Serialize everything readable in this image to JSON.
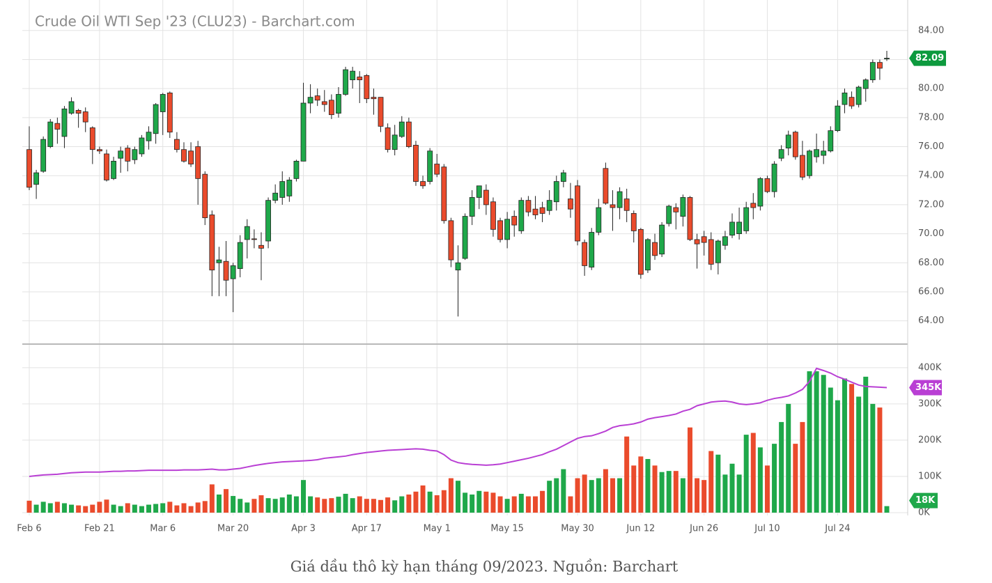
{
  "chart_data": {
    "type": "candlestick",
    "title": "Crude Oil WTI Sep '23 (CLU23) - Barchart.com",
    "caption": "Giá dầu thô kỳ hạn tháng 09/2023. Nguồn: Barchart",
    "categories": [
      "Feb 6",
      null,
      null,
      null,
      null,
      null,
      null,
      null,
      null,
      null,
      "Feb 21",
      null,
      null,
      null,
      null,
      null,
      null,
      null,
      null,
      "Mar 6",
      null,
      null,
      null,
      null,
      null,
      null,
      null,
      null,
      null,
      "Mar 20",
      null,
      null,
      null,
      null,
      null,
      null,
      null,
      null,
      null,
      "Apr 3",
      null,
      null,
      null,
      null,
      null,
      null,
      null,
      null,
      "Apr 17",
      null,
      null,
      null,
      null,
      null,
      null,
      null,
      null,
      null,
      "May 1",
      null,
      null,
      null,
      null,
      null,
      null,
      null,
      null,
      null,
      "May 15",
      null,
      null,
      null,
      null,
      null,
      null,
      null,
      null,
      null,
      "May 30",
      null,
      null,
      null,
      null,
      null,
      null,
      null,
      null,
      "Jun 12",
      null,
      null,
      null,
      null,
      null,
      null,
      null,
      null,
      "Jun 26",
      null,
      null,
      null,
      null,
      null,
      null,
      null,
      null,
      "Jul 10",
      null,
      null,
      null,
      null,
      null,
      null,
      null,
      null,
      null,
      "Jul 24",
      null,
      null,
      null,
      null,
      null,
      null,
      null
    ],
    "open": [
      75.8,
      73.4,
      74.3,
      76.0,
      77.6,
      76.7,
      78.3,
      78.5,
      78.4,
      77.3,
      75.8,
      75.5,
      73.8,
      75.2,
      75.9,
      75.1,
      75.5,
      76.4,
      76.9,
      78.4,
      79.7,
      76.5,
      75.8,
      75.7,
      76.0,
      74.1,
      71.3,
      68.0,
      68.1,
      66.9,
      67.6,
      69.6,
      69.65,
      69.2,
      69.5,
      72.3,
      72.5,
      72.6,
      73.8,
      75.0,
      79.0,
      79.5,
      79.1,
      79.2,
      78.3,
      79.6,
      80.6,
      80.8,
      80.9,
      79.4,
      79.4,
      77.3,
      75.8,
      76.7,
      77.7,
      76.1,
      73.6,
      73.6,
      74.8,
      74.6,
      70.9,
      67.5,
      68.3,
      71.2,
      72.5,
      73.0,
      72.2,
      70.9,
      69.6,
      71.2,
      70.2,
      72.3,
      71.7,
      71.8,
      71.6,
      72.2,
      73.6,
      72.4,
      73.3,
      69.4,
      67.7,
      70.1,
      74.5,
      72.0,
      71.8,
      72.4,
      71.4,
      70.3,
      67.5,
      69.4,
      68.6,
      70.7,
      71.8,
      71.2,
      72.5,
      69.6,
      69.8,
      69.6,
      68.0,
      69.2,
      69.9,
      70.0,
      70.2,
      72.1,
      71.9,
      73.8,
      72.9,
      75.2,
      75.9,
      77.0,
      75.4,
      74.0,
      75.3,
      75.4,
      75.7,
      77.1,
      78.9,
      79.4,
      78.9,
      80.0,
      80.6,
      81.8,
      82.04
    ],
    "high": [
      77.4,
      74.4,
      76.7,
      77.9,
      78.0,
      78.8,
      79.4,
      78.6,
      78.7,
      77.4,
      76.0,
      75.8,
      75.3,
      76.0,
      76.1,
      76.0,
      76.8,
      77.4,
      79.0,
      79.7,
      79.8,
      77.0,
      76.3,
      76.3,
      76.4,
      74.3,
      71.6,
      69.1,
      69.5,
      68.0,
      69.9,
      71.0,
      70.3,
      70.1,
      72.5,
      73.4,
      74.3,
      73.9,
      75.1,
      80.4,
      80.3,
      80.0,
      79.9,
      79.6,
      80.1,
      81.5,
      81.5,
      81.2,
      81.0,
      80.0,
      79.4,
      77.6,
      77.5,
      78.1,
      78.0,
      76.4,
      74.0,
      75.9,
      75.5,
      74.8,
      71.1,
      69.2,
      71.4,
      73.0,
      73.3,
      73.4,
      72.5,
      71.1,
      71.5,
      71.6,
      72.5,
      72.6,
      72.6,
      72.2,
      73.0,
      74.0,
      74.4,
      73.5,
      73.7,
      69.6,
      70.4,
      72.4,
      74.9,
      73.0,
      73.2,
      73.1,
      71.6,
      70.4,
      69.7,
      70.0,
      70.8,
      72.0,
      72.1,
      72.7,
      72.6,
      70.0,
      70.2,
      70.1,
      69.6,
      70.2,
      71.4,
      71.8,
      72.2,
      72.8,
      73.9,
      74.0,
      75.0,
      76.1,
      77.1,
      77.1,
      76.4,
      75.8,
      76.9,
      76.4,
      77.4,
      79.2,
      80.0,
      79.8,
      80.2,
      80.7,
      82.0,
      82.0,
      82.6
    ],
    "low": [
      73.0,
      72.4,
      74.2,
      75.9,
      76.2,
      75.9,
      78.2,
      77.3,
      77.0,
      74.8,
      75.5,
      73.6,
      73.7,
      74.2,
      74.3,
      74.8,
      75.3,
      75.8,
      76.2,
      76.8,
      76.6,
      75.6,
      74.9,
      74.6,
      72.0,
      70.6,
      65.7,
      65.7,
      65.7,
      64.6,
      67.0,
      68.3,
      69.0,
      66.8,
      69.0,
      72.1,
      72.0,
      72.2,
      73.6,
      75.0,
      78.3,
      78.8,
      78.4,
      77.9,
      78.0,
      79.5,
      80.0,
      79.0,
      79.0,
      78.2,
      77.0,
      75.6,
      75.4,
      76.6,
      75.9,
      73.3,
      73.1,
      73.4,
      73.9,
      70.7,
      67.7,
      64.3,
      68.2,
      70.6,
      71.7,
      71.3,
      69.8,
      69.4,
      69.0,
      69.8,
      70.0,
      71.2,
      71.0,
      70.8,
      71.3,
      71.6,
      73.2,
      71.1,
      69.2,
      67.1,
      67.5,
      69.9,
      72.0,
      70.2,
      71.0,
      70.8,
      69.4,
      66.9,
      67.3,
      68.2,
      68.4,
      70.5,
      70.3,
      70.5,
      69.5,
      67.6,
      68.5,
      67.5,
      67.2,
      68.9,
      69.7,
      69.6,
      70.0,
      71.0,
      71.6,
      72.8,
      72.5,
      75.0,
      75.4,
      75.1,
      73.7,
      73.8,
      74.9,
      74.8,
      75.6,
      77.0,
      78.3,
      78.6,
      78.7,
      79.1,
      80.4,
      80.6,
      81.9
    ],
    "close": [
      73.2,
      74.2,
      76.5,
      77.7,
      77.2,
      78.6,
      79.1,
      78.3,
      77.7,
      75.8,
      75.7,
      73.7,
      75.0,
      75.7,
      75.0,
      75.8,
      76.6,
      77.0,
      78.9,
      79.6,
      77.0,
      75.8,
      75.0,
      74.8,
      73.8,
      71.1,
      67.5,
      68.2,
      66.8,
      67.8,
      69.4,
      70.5,
      69.6,
      69.0,
      72.3,
      72.8,
      73.6,
      73.7,
      75.0,
      79.0,
      79.4,
      79.2,
      78.9,
      78.2,
      79.6,
      81.3,
      81.2,
      80.6,
      79.3,
      79.3,
      77.4,
      75.8,
      76.8,
      77.7,
      76.0,
      73.6,
      73.3,
      75.7,
      74.1,
      70.9,
      68.2,
      68.0,
      71.2,
      72.5,
      73.3,
      72.0,
      70.3,
      69.6,
      71.0,
      70.6,
      72.3,
      71.5,
      71.3,
      71.4,
      72.3,
      73.6,
      74.2,
      71.7,
      69.5,
      67.8,
      70.1,
      71.8,
      72.1,
      71.8,
      72.9,
      71.6,
      70.2,
      67.2,
      69.6,
      68.5,
      70.6,
      71.9,
      71.5,
      72.5,
      69.6,
      69.3,
      69.4,
      67.9,
      69.5,
      69.8,
      70.8,
      70.8,
      71.8,
      71.8,
      73.8,
      72.9,
      74.8,
      75.8,
      76.8,
      75.3,
      73.9,
      75.7,
      75.8,
      75.7,
      77.1,
      78.8,
      79.7,
      78.8,
      80.1,
      80.6,
      81.8,
      81.4,
      82.09
    ],
    "up_color": "#1fa84a",
    "down_color": "#ea4b2c",
    "ylim": [
      62.4,
      86.1
    ],
    "yticks": [
      {
        "value": 64,
        "label": "64.00"
      },
      {
        "value": 66,
        "label": "66.00"
      },
      {
        "value": 68,
        "label": "68.00"
      },
      {
        "value": 70,
        "label": "70.00"
      },
      {
        "value": 72,
        "label": "72.00"
      },
      {
        "value": 74,
        "label": "74.00"
      },
      {
        "value": 76,
        "label": "76.00"
      },
      {
        "value": 78,
        "label": "78.00"
      },
      {
        "value": 80,
        "label": "80.00"
      },
      {
        "value": 82,
        "label": "82.00"
      },
      {
        "value": 84,
        "label": "84.00"
      }
    ],
    "volume": {
      "values": [
        33000,
        22000,
        30000,
        26000,
        30000,
        26000,
        22000,
        20000,
        18000,
        22000,
        30000,
        36000,
        22000,
        18000,
        26000,
        22000,
        18000,
        22000,
        24000,
        26000,
        30000,
        20000,
        26000,
        18000,
        28000,
        32000,
        78000,
        50000,
        65000,
        46000,
        38000,
        28000,
        38000,
        48000,
        40000,
        38000,
        42000,
        50000,
        45000,
        90000,
        45000,
        42000,
        38000,
        40000,
        44000,
        52000,
        40000,
        45000,
        38000,
        38000,
        35000,
        42000,
        34000,
        45000,
        50000,
        58000,
        75000,
        58000,
        48000,
        62000,
        95000,
        88000,
        55000,
        50000,
        60000,
        58000,
        55000,
        45000,
        38000,
        45000,
        52000,
        45000,
        45000,
        60000,
        88000,
        95000,
        120000,
        45000,
        95000,
        105000,
        90000,
        95000,
        120000,
        95000,
        95000,
        210000,
        130000,
        155000,
        148000,
        130000,
        112000,
        115000,
        115000,
        95000,
        235000,
        95000,
        90000,
        170000,
        160000,
        105000,
        135000,
        105000,
        215000,
        220000,
        180000,
        130000,
        190000,
        250000,
        300000,
        190000,
        250000,
        390000,
        390000,
        380000,
        345000,
        310000,
        370000,
        355000,
        320000,
        375000,
        300000,
        290000,
        18000
      ],
      "last_label": "18K"
    },
    "volume_ma": {
      "color": "#b93fd4",
      "last_label": "345K",
      "values": [
        100000,
        102000,
        104000,
        105000,
        106000,
        108000,
        110000,
        111000,
        112000,
        112000,
        112000,
        113000,
        114000,
        114000,
        115000,
        115000,
        116000,
        117000,
        117000,
        117000,
        117000,
        117000,
        118000,
        118000,
        118000,
        119000,
        120000,
        118000,
        118000,
        120000,
        122000,
        126000,
        130000,
        133000,
        136000,
        138000,
        140000,
        141000,
        142000,
        143000,
        144000,
        146000,
        150000,
        152000,
        154000,
        156000,
        160000,
        163000,
        166000,
        168000,
        170000,
        172000,
        173000,
        174000,
        175000,
        176000,
        175000,
        172000,
        170000,
        160000,
        145000,
        138000,
        135000,
        133000,
        132000,
        131000,
        132000,
        134000,
        138000,
        142000,
        146000,
        150000,
        155000,
        160000,
        168000,
        175000,
        185000,
        195000,
        205000,
        210000,
        212000,
        218000,
        225000,
        235000,
        240000,
        242000,
        245000,
        250000,
        258000,
        262000,
        265000,
        268000,
        272000,
        280000,
        285000,
        295000,
        300000,
        305000,
        307000,
        308000,
        305000,
        300000,
        298000,
        300000,
        303000,
        310000,
        315000,
        318000,
        322000,
        330000,
        340000,
        362000,
        398000,
        392000,
        385000,
        375000,
        368000,
        360000,
        352000,
        348000,
        347000,
        346000,
        345000
      ]
    },
    "y2lim": [
      0,
      465000
    ],
    "y2ticks": [
      {
        "value": 0,
        "label": "0K"
      },
      {
        "value": 100000,
        "label": "100K"
      },
      {
        "value": 200000,
        "label": "200K"
      },
      {
        "value": 300000,
        "label": "300K"
      },
      {
        "value": 400000,
        "label": "400K"
      }
    ]
  }
}
